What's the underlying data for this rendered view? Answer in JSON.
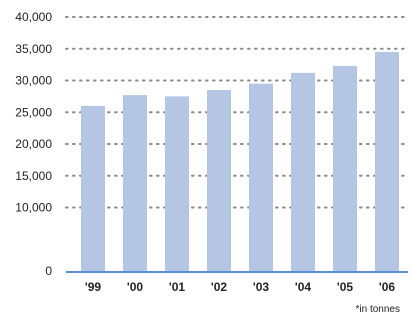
{
  "chart_data": {
    "type": "bar",
    "categories": [
      "'99",
      "'00",
      "'01",
      "'02",
      "'03",
      "'04",
      "'05",
      "'06"
    ],
    "values": [
      26000,
      27700,
      27500,
      28500,
      29500,
      31200,
      32300,
      34500
    ],
    "ylim": [
      0,
      40000
    ],
    "yticks": [
      "0",
      "10,000",
      "15,000",
      "20,000",
      "25,000",
      "30,000",
      "35,000",
      "40,000"
    ],
    "ytick_values": [
      0,
      10000,
      15000,
      20000,
      25000,
      30000,
      35000,
      40000
    ],
    "grid": true,
    "footnote": "*in tonnes",
    "colors": {
      "bar": "#b4c6e3",
      "baseline": "#5b8fd4",
      "grid": "#8a8a8a",
      "text": "#222222"
    }
  }
}
